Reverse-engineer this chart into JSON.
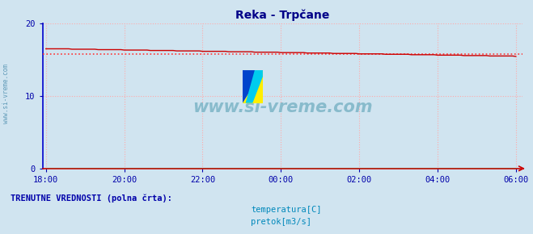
{
  "title": "Reka - Trpčane",
  "background_color": "#d0e4f0",
  "plot_bg_color": "#d0e4f0",
  "x_ticks_labels": [
    "18:00",
    "20:00",
    "22:00",
    "00:00",
    "02:00",
    "04:00",
    "06:00"
  ],
  "x_tick_positions": [
    0,
    120,
    240,
    360,
    480,
    600,
    720
  ],
  "y_ticks": [
    0,
    10,
    20
  ],
  "ylim": [
    0,
    20
  ],
  "xlim": [
    -5,
    730
  ],
  "temp_start": 16.5,
  "temp_mid": 15.85,
  "temp_end": 15.45,
  "temp_avg": 15.8,
  "pretok_value": 0.02,
  "grid_color": "#ffaaaa",
  "grid_linestyle": ":",
  "temp_line_color": "#cc0000",
  "pretok_line_color": "#008800",
  "avg_line_color": "#ff3333",
  "avg_linestyle": ":",
  "watermark": "www.si-vreme.com",
  "watermark_color": "#88bbcc",
  "sidebar_text": "www.si-vreme.com",
  "sidebar_color": "#4488aa",
  "legend_title": "TRENUTNE VREDNOSTI (polna črta):",
  "legend_title_color": "#0000aa",
  "legend_temp_label": "temperatura[C]",
  "legend_pretok_label": "pretok[m3/s]",
  "legend_color": "#0088bb",
  "title_color": "#000088",
  "tick_color": "#0000aa",
  "left_spine_color": "#0000cc",
  "bottom_spine_color": "#cc0000",
  "n_points": 145
}
